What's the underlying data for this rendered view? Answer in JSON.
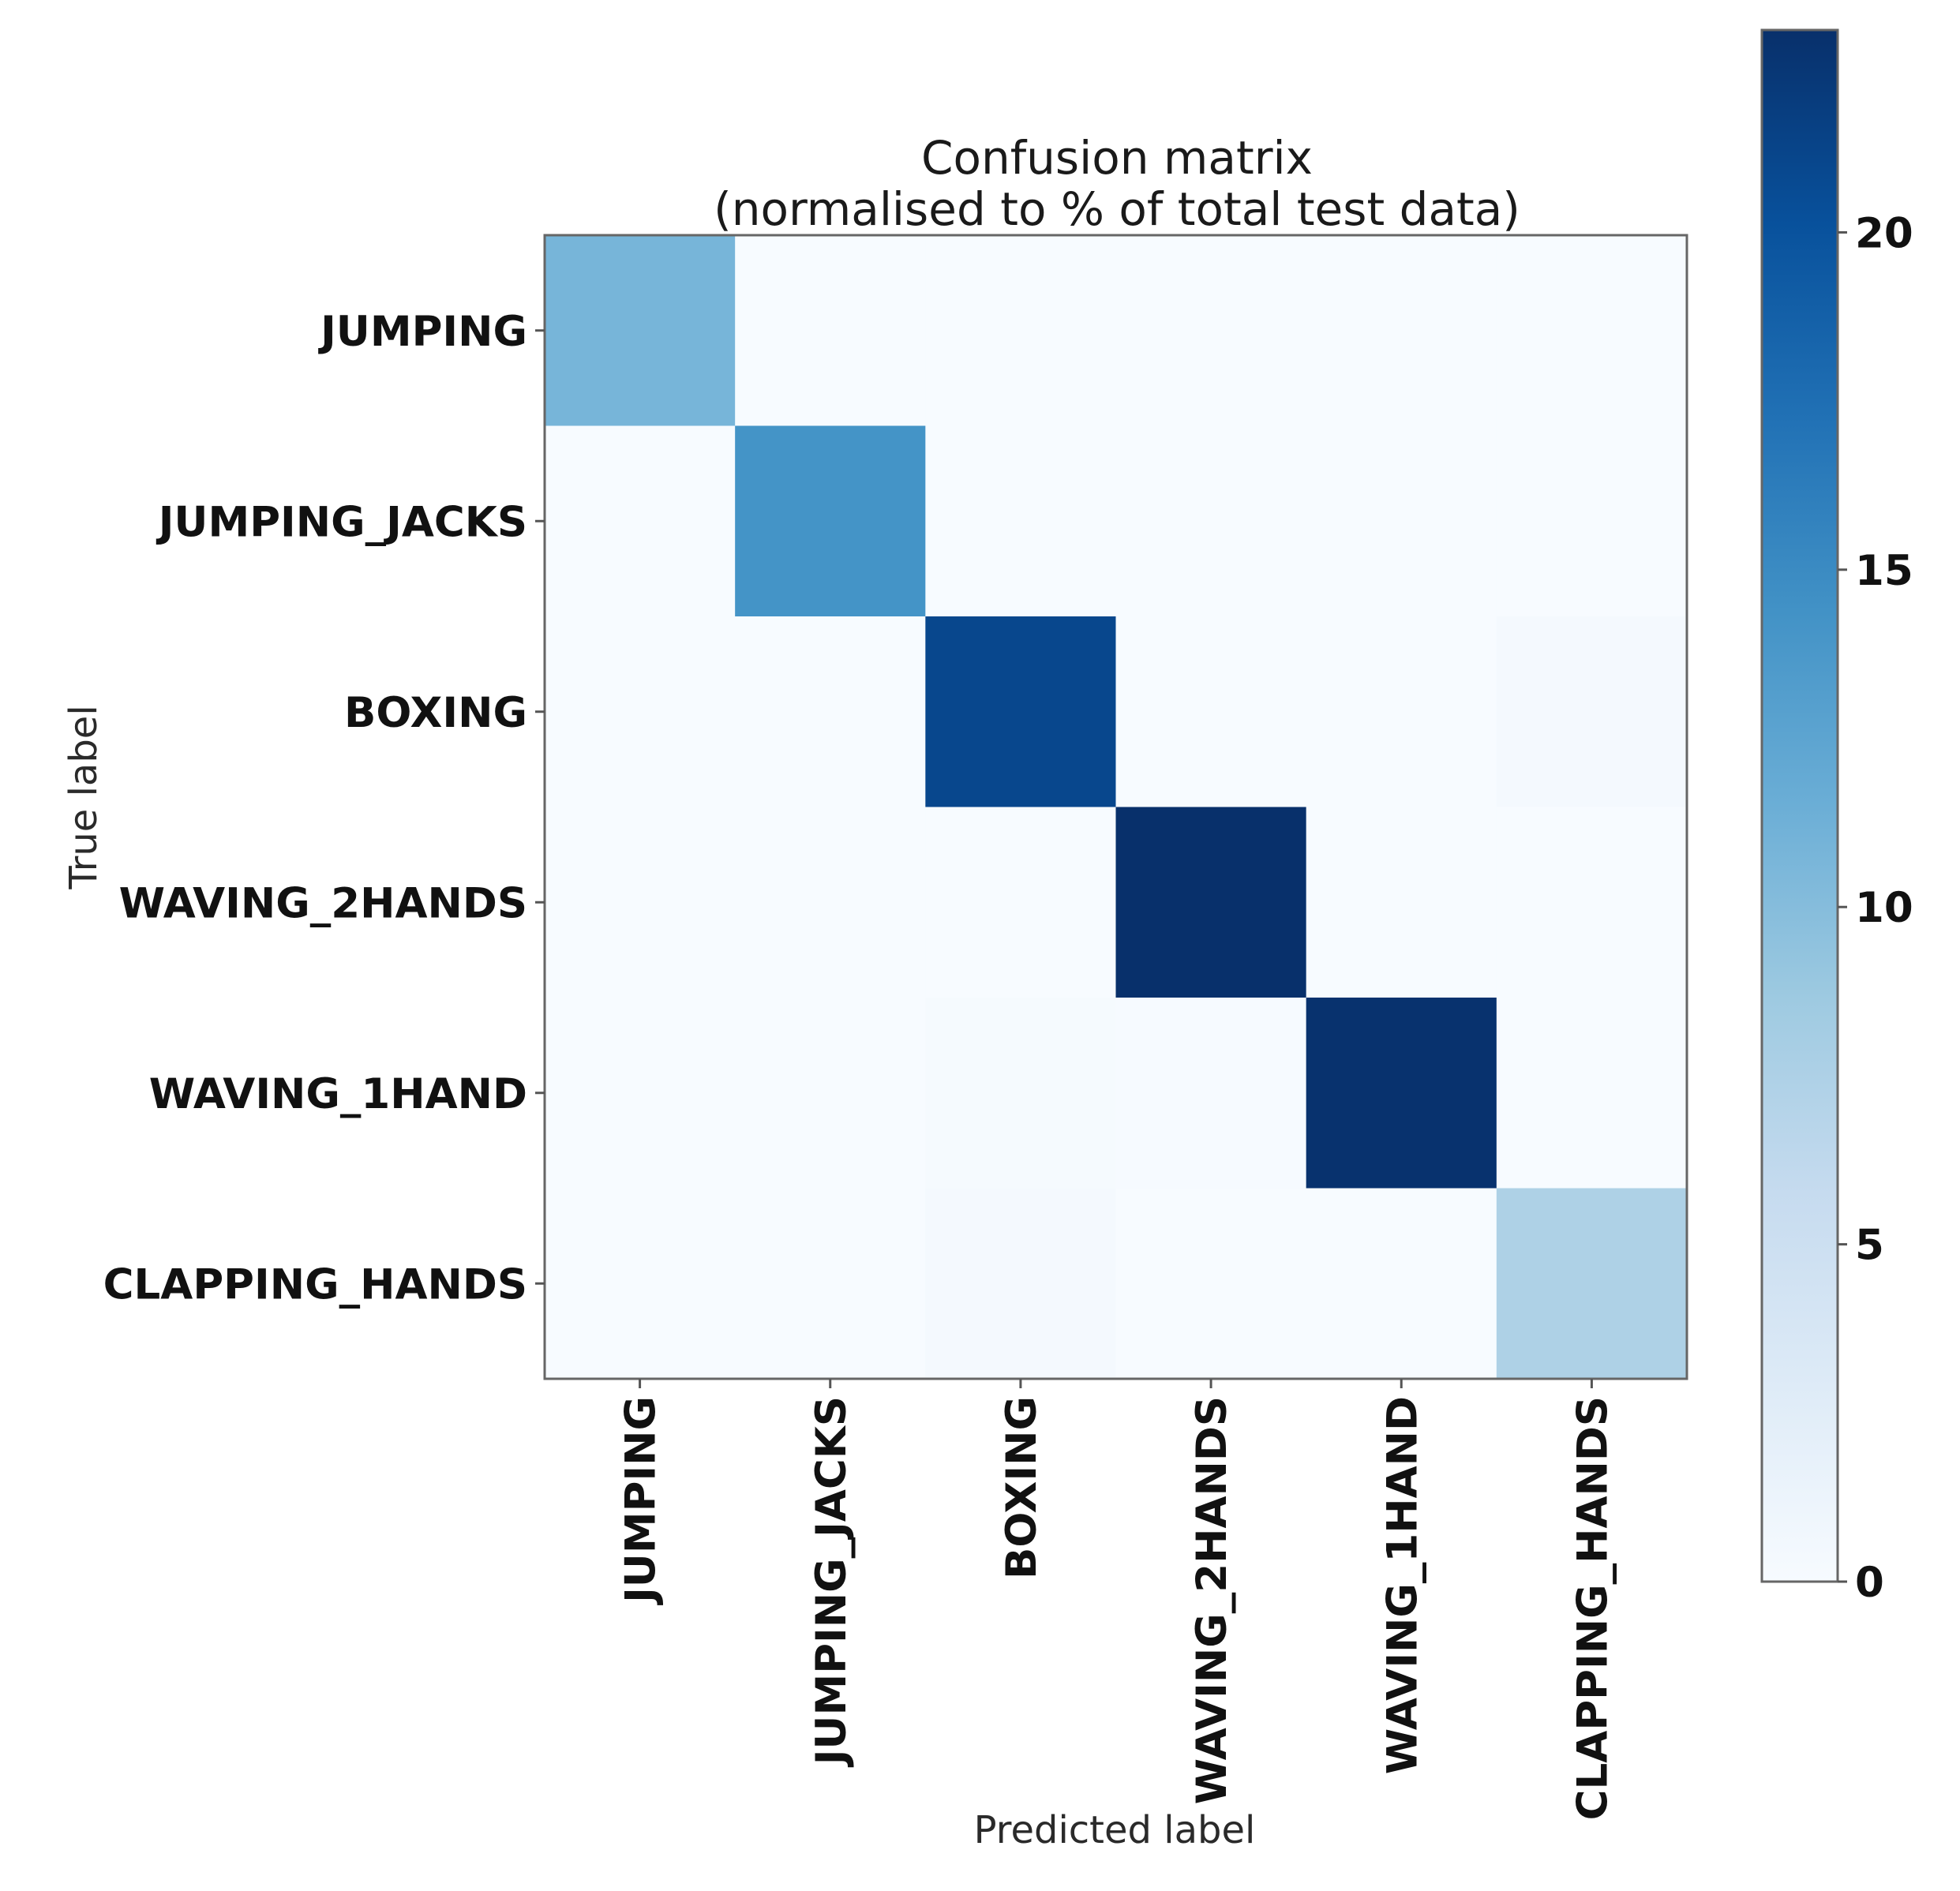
{
  "chart_data": {
    "type": "heatmap",
    "title_lines": [
      "Confusion matrix",
      "(normalised to % of total test data)"
    ],
    "xlabel": "Predicted label",
    "ylabel": "True label",
    "row_labels": [
      "JUMPING",
      "JUMPING_JACKS",
      "BOXING",
      "WAVING_2HANDS",
      "WAVING_1HAND",
      "CLAPPING_HANDS"
    ],
    "col_labels": [
      "JUMPING",
      "JUMPING_JACKS",
      "BOXING",
      "WAVING_2HANDS",
      "WAVING_1HAND",
      "CLAPPING_HANDS"
    ],
    "matrix": [
      [
        10.8,
        0.0,
        0.0,
        0.0,
        0.0,
        0.0
      ],
      [
        0.0,
        14.2,
        0.0,
        0.0,
        0.0,
        0.0
      ],
      [
        0.0,
        0.0,
        21.0,
        0.0,
        0.0,
        0.3
      ],
      [
        0.0,
        0.0,
        0.0,
        23.0,
        0.0,
        0.0
      ],
      [
        0.0,
        0.0,
        0.2,
        0.1,
        22.8,
        0.0
      ],
      [
        0.0,
        0.0,
        0.4,
        0.0,
        0.0,
        7.5
      ]
    ],
    "colormap": "Blues",
    "colormap_stops": [
      "#f7fbff",
      "#deebf7",
      "#c6dbef",
      "#9ecae1",
      "#6baed6",
      "#4292c6",
      "#2171b5",
      "#08519c",
      "#08306b"
    ],
    "colorbar": {
      "range": [
        0,
        23
      ],
      "ticks": [
        0,
        5,
        10,
        15,
        20
      ],
      "tick_labels": [
        "0",
        "5",
        "10",
        "15",
        "20"
      ]
    }
  }
}
